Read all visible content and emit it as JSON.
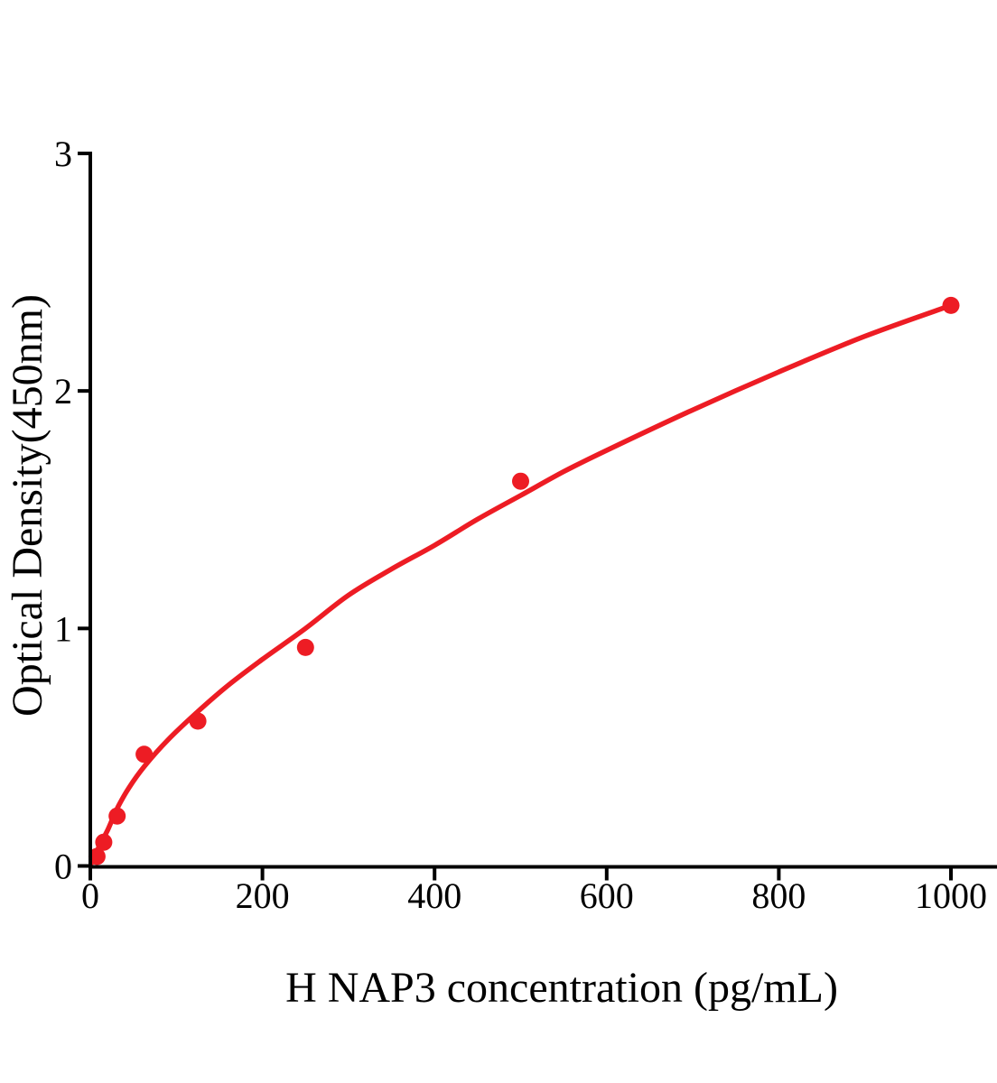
{
  "figure": {
    "background": "#ffffff",
    "description": "ELISA standard curve plot"
  },
  "chart_data": {
    "type": "scatter",
    "title": "",
    "xlabel": "H NAP3 concentration (pg/mL)",
    "ylabel": "Optical Density(450nm)",
    "xlim": [
      0,
      1053
    ],
    "ylim": [
      0,
      3
    ],
    "x_ticks": [
      0,
      200,
      400,
      600,
      800,
      1000
    ],
    "y_ticks": [
      0,
      1,
      2,
      3
    ],
    "grid": false,
    "legend_position": "none",
    "axis_color": "#000000",
    "accent_color": "#ED1C24",
    "series": [
      {
        "name": "standard-points",
        "kind": "scatter",
        "color": "#ED1C24",
        "marker": "circle",
        "marker_radius": 9.5,
        "x": [
          7.8,
          15.6,
          31.2,
          62.5,
          125,
          250,
          500,
          1000
        ],
        "y": [
          0.04,
          0.1,
          0.21,
          0.47,
          0.61,
          0.92,
          1.62,
          2.36
        ]
      },
      {
        "name": "fitted-curve",
        "kind": "line",
        "color": "#ED1C24",
        "stroke_width": 5.5,
        "x": [
          1,
          10,
          20,
          31,
          45,
          63,
          90,
          125,
          160,
          200,
          250,
          300,
          350,
          400,
          450,
          500,
          550,
          600,
          700,
          800,
          900,
          1000
        ],
        "y": [
          0.01,
          0.08,
          0.15,
          0.24,
          0.33,
          0.42,
          0.53,
          0.65,
          0.76,
          0.87,
          1.0,
          1.14,
          1.25,
          1.35,
          1.46,
          1.56,
          1.66,
          1.75,
          1.92,
          2.08,
          2.23,
          2.36
        ]
      }
    ]
  }
}
